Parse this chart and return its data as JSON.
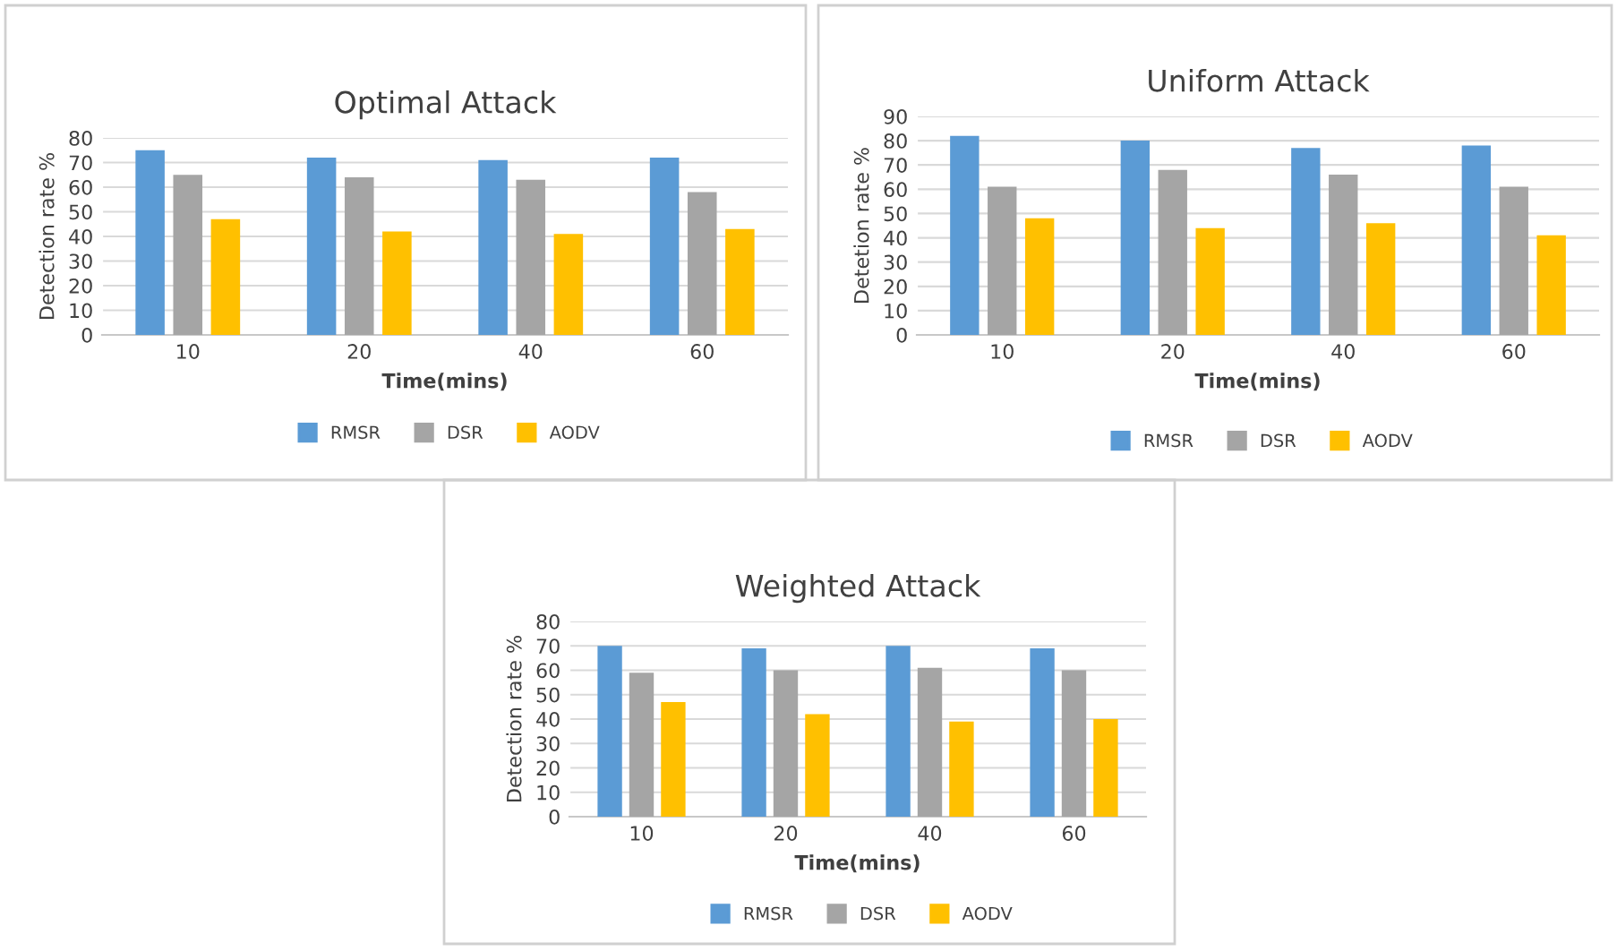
{
  "chart_data": [
    {
      "type": "bar",
      "title": "Optimal Attack",
      "xlabel": "Time(mins)",
      "ylabel": "Detection rate %",
      "categories": [
        "10",
        "20",
        "40",
        "60"
      ],
      "series": [
        {
          "name": "RMSR",
          "color": "#5b9bd5",
          "values": [
            75,
            72,
            71,
            72
          ]
        },
        {
          "name": "DSR",
          "color": "#a5a5a5",
          "values": [
            65,
            64,
            63,
            58
          ]
        },
        {
          "name": "AODV",
          "color": "#ffc000",
          "values": [
            47,
            42,
            41,
            43
          ]
        }
      ],
      "ylim": [
        0,
        80
      ],
      "yticks": [
        0,
        10,
        20,
        30,
        40,
        50,
        60,
        70,
        80
      ],
      "grid": "y",
      "legend": "bottom"
    },
    {
      "type": "bar",
      "title": "Uniform Attack",
      "xlabel": "Time(mins)",
      "ylabel": "Detetion rate %",
      "categories": [
        "10",
        "20",
        "40",
        "60"
      ],
      "series": [
        {
          "name": "RMSR",
          "color": "#5b9bd5",
          "values": [
            82,
            80,
            77,
            78
          ]
        },
        {
          "name": "DSR",
          "color": "#a5a5a5",
          "values": [
            61,
            68,
            66,
            61
          ]
        },
        {
          "name": "AODV",
          "color": "#ffc000",
          "values": [
            48,
            44,
            46,
            41
          ]
        }
      ],
      "ylim": [
        0,
        90
      ],
      "yticks": [
        0,
        10,
        20,
        30,
        40,
        50,
        60,
        70,
        80,
        90
      ],
      "grid": "y",
      "legend": "bottom"
    },
    {
      "type": "bar",
      "title": "Weighted Attack",
      "xlabel": "Time(mins)",
      "ylabel": "Detection rate %",
      "categories": [
        "10",
        "20",
        "40",
        "60"
      ],
      "series": [
        {
          "name": "RMSR",
          "color": "#5b9bd5",
          "values": [
            70,
            69,
            70,
            69
          ]
        },
        {
          "name": "DSR",
          "color": "#a5a5a5",
          "values": [
            59,
            60,
            61,
            60
          ]
        },
        {
          "name": "AODV",
          "color": "#ffc000",
          "values": [
            47,
            42,
            39,
            40
          ]
        }
      ],
      "ylim": [
        0,
        80
      ],
      "yticks": [
        0,
        10,
        20,
        30,
        40,
        50,
        60,
        70,
        80
      ],
      "grid": "y",
      "legend": "bottom"
    }
  ]
}
